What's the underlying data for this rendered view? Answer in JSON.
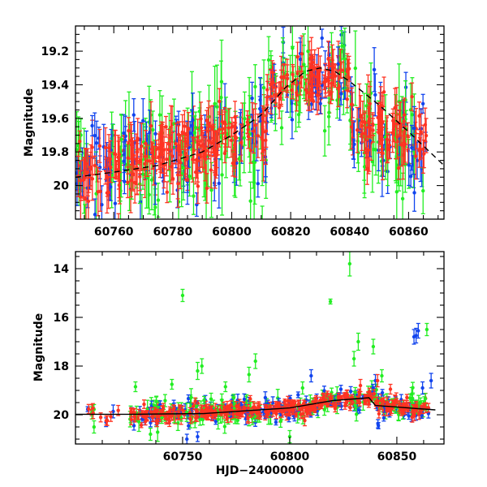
{
  "chart_data": [
    {
      "type": "scatter",
      "panel": "top",
      "xlabel": "",
      "ylabel": "Magnitude",
      "xlim": [
        60747,
        60872
      ],
      "ylim": [
        20.2,
        19.05
      ],
      "y_inverted": true,
      "x_ticks": [
        60760,
        60780,
        60800,
        60820,
        60840,
        60860
      ],
      "x_tick_labels": [
        "60760",
        "60780",
        "60800",
        "60820",
        "60840",
        "60860"
      ],
      "y_ticks": [
        19.2,
        19.4,
        19.6,
        19.8,
        20.0
      ],
      "y_tick_labels": [
        "19.2",
        "19.4",
        "19.6",
        "19.8",
        "20"
      ],
      "grid": false,
      "model_curve": {
        "color": "#000000",
        "style": "dashed",
        "x": [
          60747,
          60760,
          60775,
          60790,
          60800,
          60810,
          60818,
          60825,
          60830,
          60835,
          60840,
          60850,
          60860,
          60872
        ],
        "y": [
          19.95,
          19.92,
          19.88,
          19.8,
          19.7,
          19.58,
          19.42,
          19.32,
          19.3,
          19.32,
          19.38,
          19.52,
          19.68,
          19.88
        ]
      },
      "series_colors": [
        "#22ee22",
        "#1144ee",
        "#ff3322"
      ],
      "segments": [
        {
          "x0": 60747,
          "x1": 60812,
          "y0": 19.93,
          "y1": 19.68,
          "scatter": 0.12,
          "err": 0.09
        },
        {
          "x0": 60812,
          "x1": 60840,
          "y0": 19.42,
          "y1": 19.32,
          "scatter": 0.09,
          "err": 0.07
        },
        {
          "x0": 60840,
          "x1": 60866,
          "y0": 19.62,
          "y1": 19.78,
          "scatter": 0.12,
          "err": 0.09
        }
      ]
    },
    {
      "type": "scatter",
      "panel": "bottom",
      "xlabel": "HJD−2400000",
      "ylabel": "Magnitude",
      "xlim": [
        60700,
        60872
      ],
      "ylim": [
        21.2,
        13.3
      ],
      "y_inverted": true,
      "x_ticks": [
        60750,
        60800,
        60850
      ],
      "x_tick_labels": [
        "60750",
        "60800",
        "60850"
      ],
      "y_ticks": [
        14,
        16,
        18,
        20
      ],
      "y_tick_labels": [
        "14",
        "16",
        "18",
        "20"
      ],
      "grid": false,
      "model_curve": {
        "color": "#000000",
        "style": "solid",
        "x": [
          60700,
          60725,
          60760,
          60800,
          60820,
          60830,
          60837,
          60840,
          60850,
          60860,
          60868
        ],
        "y": [
          19.98,
          19.98,
          19.95,
          19.72,
          19.42,
          19.35,
          19.3,
          19.62,
          19.68,
          19.75,
          19.8
        ]
      },
      "series_colors": [
        "#22ee22",
        "#1144ee",
        "#ff3322"
      ],
      "segments": [
        {
          "x0": 60705,
          "x1": 60720,
          "y0": 19.95,
          "y1": 20.05,
          "scatter": 0.25,
          "err": 0.15,
          "sparse": true
        },
        {
          "x0": 60725,
          "x1": 60812,
          "y0": 20.0,
          "y1": 19.72,
          "scatter": 0.22,
          "err": 0.14
        },
        {
          "x0": 60812,
          "x1": 60840,
          "y0": 19.45,
          "y1": 19.3,
          "scatter": 0.2,
          "err": 0.12
        },
        {
          "x0": 60840,
          "x1": 60866,
          "y0": 19.6,
          "y1": 19.75,
          "scatter": 0.22,
          "err": 0.14
        }
      ],
      "outliers": [
        {
          "series": 0,
          "x": 60750,
          "y": 15.1,
          "err": 0.25
        },
        {
          "series": 0,
          "x": 60757,
          "y": 18.2,
          "err": 0.35
        },
        {
          "series": 0,
          "x": 60759,
          "y": 18.0,
          "err": 0.3
        },
        {
          "series": 0,
          "x": 60728,
          "y": 18.85,
          "err": 0.2
        },
        {
          "series": 0,
          "x": 60745,
          "y": 18.75,
          "err": 0.2
        },
        {
          "series": 0,
          "x": 60781,
          "y": 18.35,
          "err": 0.3
        },
        {
          "series": 0,
          "x": 60784,
          "y": 17.8,
          "err": 0.3
        },
        {
          "series": 0,
          "x": 60819,
          "y": 15.35,
          "err": 0.1
        },
        {
          "series": 0,
          "x": 60828,
          "y": 13.8,
          "err": 0.5
        },
        {
          "series": 0,
          "x": 60830,
          "y": 17.7,
          "err": 0.3
        },
        {
          "series": 0,
          "x": 60832,
          "y": 17.0,
          "err": 0.35
        },
        {
          "series": 0,
          "x": 60839,
          "y": 17.2,
          "err": 0.3
        },
        {
          "series": 0,
          "x": 60864,
          "y": 16.5,
          "err": 0.25
        },
        {
          "series": 0,
          "x": 60770,
          "y": 18.85,
          "err": 0.2
        },
        {
          "series": 0,
          "x": 60806,
          "y": 18.9,
          "err": 0.25
        },
        {
          "series": 0,
          "x": 60843,
          "y": 18.4,
          "err": 0.25
        },
        {
          "series": 1,
          "x": 60810,
          "y": 18.4,
          "err": 0.25
        },
        {
          "series": 1,
          "x": 60858,
          "y": 16.8,
          "err": 0.3
        },
        {
          "series": 1,
          "x": 60859,
          "y": 16.75,
          "err": 0.3
        },
        {
          "series": 1,
          "x": 60860,
          "y": 16.55,
          "err": 0.3
        },
        {
          "series": 1,
          "x": 60866,
          "y": 18.6,
          "err": 0.3
        },
        {
          "series": 1,
          "x": 60840,
          "y": 18.6,
          "err": 0.25
        },
        {
          "series": 1,
          "x": 60862,
          "y": 18.9,
          "err": 0.25
        },
        {
          "series": 1,
          "x": 60752,
          "y": 21.0,
          "err": 0.2
        },
        {
          "series": 1,
          "x": 60757,
          "y": 20.9,
          "err": 0.2
        },
        {
          "series": 2,
          "x": 60841,
          "y": 18.6,
          "err": 0.25
        },
        {
          "series": 2,
          "x": 60833,
          "y": 18.8,
          "err": 0.25
        },
        {
          "series": 2,
          "x": 60847,
          "y": 18.95,
          "err": 0.2
        },
        {
          "series": 0,
          "x": 60800,
          "y": 20.9,
          "err": 0.25
        },
        {
          "series": 0,
          "x": 60735,
          "y": 20.8,
          "err": 0.25
        }
      ]
    }
  ]
}
